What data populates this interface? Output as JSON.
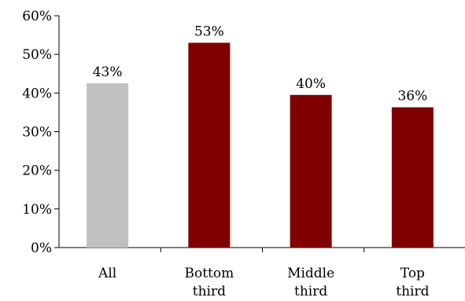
{
  "chart_data": {
    "type": "bar",
    "categories": [
      [
        "All"
      ],
      [
        "Bottom",
        "third"
      ],
      [
        "Middle",
        "third"
      ],
      [
        "Top",
        "third"
      ]
    ],
    "values": [
      42.5,
      53,
      39.5,
      36.3
    ],
    "data_labels": [
      "43%",
      "53%",
      "40%",
      "36%"
    ],
    "colors": [
      "#c0c0c0",
      "#800000",
      "#800000",
      "#800000"
    ],
    "ylim": [
      0,
      60
    ],
    "yticks": [
      0,
      10,
      20,
      30,
      40,
      50,
      60
    ],
    "ytick_labels": [
      "0%",
      "10%",
      "20%",
      "30%",
      "40%",
      "50%",
      "60%"
    ],
    "grid": false,
    "title": "",
    "xlabel": "",
    "ylabel": ""
  }
}
